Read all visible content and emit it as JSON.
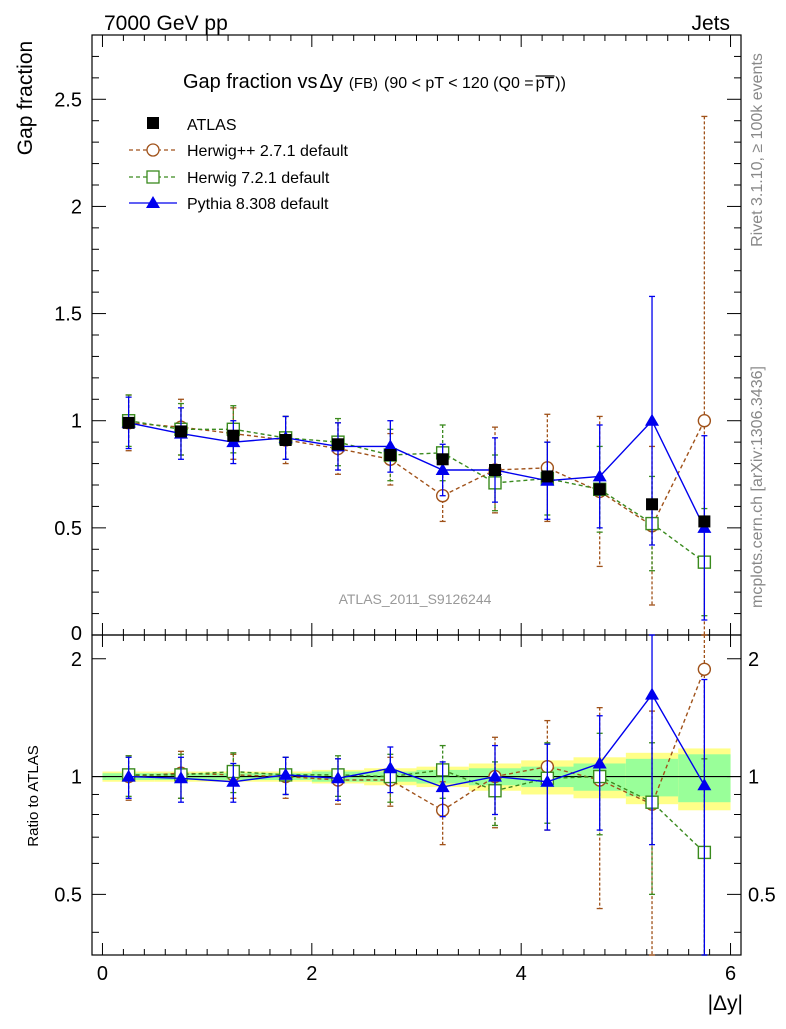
{
  "header": {
    "left": "7000 GeV pp",
    "right": "Jets"
  },
  "side": {
    "rivet": "Rivet 3.1.10, ≥ 100k events",
    "source": "mcplots.cern.ch [arXiv:1306.3436]"
  },
  "watermark": "ATLAS_2011_S9126244",
  "chart_data": {
    "type": "scatter",
    "title": {
      "main": "Gap fraction vs",
      "delta": "Δy",
      "cut": "(FB)",
      "range": "(90 < pT < 120 (Q0 =",
      "pt": "pT",
      "close": "))"
    },
    "xlabel": "|Δy|",
    "ylabel_top": "Gap fraction",
    "ylabel_ratio": "Ratio to ATLAS",
    "xlim": [
      -0.1,
      6.1
    ],
    "ylim_top": [
      0,
      2.8
    ],
    "ylim_ratio": [
      0.35,
      2.3
    ],
    "ratio_scale": "log",
    "xticks": [
      "0",
      "2",
      "4",
      "6"
    ],
    "yticks_top": [
      "0.5",
      "1",
      "1.5",
      "2",
      "2.5"
    ],
    "yticks_ratio": [
      "0.5",
      "1",
      "2"
    ],
    "x": [
      0.25,
      0.75,
      1.25,
      1.75,
      2.25,
      2.75,
      3.25,
      3.75,
      4.25,
      4.75,
      5.25,
      5.75
    ],
    "data_band_inner": [
      0.02,
      0.02,
      0.02,
      0.02,
      0.03,
      0.03,
      0.04,
      0.05,
      0.06,
      0.08,
      0.11,
      0.14
    ],
    "data_band_outer": [
      0.03,
      0.03,
      0.03,
      0.03,
      0.04,
      0.05,
      0.06,
      0.08,
      0.1,
      0.12,
      0.15,
      0.18
    ],
    "series": [
      {
        "name": "ATLAS",
        "color": "#000000",
        "marker": "square-filled",
        "values": [
          0.99,
          0.95,
          0.93,
          0.91,
          0.89,
          0.84,
          0.82,
          0.77,
          0.74,
          0.68,
          0.61,
          0.53
        ],
        "errors": [
          0.0,
          0.0,
          0.0,
          0.0,
          0.0,
          0.0,
          0.0,
          0.0,
          0.0,
          0.0,
          0.0,
          0.0
        ],
        "ratio": [
          1,
          1,
          1,
          1,
          1,
          1,
          1,
          1,
          1,
          1,
          1,
          1
        ],
        "ratio_errors": [
          0,
          0,
          0,
          0,
          0,
          0,
          0,
          0,
          0,
          0,
          0,
          0
        ]
      },
      {
        "name": "Herwig++ 2.7.1 default",
        "color": "#a0521a",
        "marker": "circle-open",
        "values": [
          0.99,
          0.97,
          0.94,
          0.91,
          0.87,
          0.82,
          0.65,
          0.77,
          0.78,
          0.67,
          0.51,
          1.0
        ],
        "errors": [
          0.13,
          0.13,
          0.12,
          0.11,
          0.12,
          0.12,
          0.12,
          0.2,
          0.25,
          0.35,
          0.37,
          1.42
        ],
        "ratio": [
          1.0,
          1.02,
          1.01,
          1.0,
          0.98,
          0.98,
          0.82,
          1.0,
          1.06,
          0.98,
          0.85,
          1.88
        ],
        "ratio_errors": [
          0.13,
          0.14,
          0.13,
          0.12,
          0.13,
          0.14,
          0.15,
          0.26,
          0.33,
          0.52,
          0.62,
          2.7
        ]
      },
      {
        "name": "Herwig 7.2.1 default",
        "color": "#3a8a1e",
        "marker": "square-open",
        "values": [
          1.0,
          0.96,
          0.96,
          0.92,
          0.9,
          0.84,
          0.85,
          0.71,
          0.73,
          0.68,
          0.52,
          0.34
        ],
        "errors": [
          0.12,
          0.12,
          0.11,
          0.1,
          0.11,
          0.12,
          0.13,
          0.13,
          0.17,
          0.2,
          0.22,
          0.25
        ],
        "ratio": [
          1.01,
          1.01,
          1.03,
          1.01,
          1.01,
          1.0,
          1.04,
          0.92,
          0.99,
          1.0,
          0.86,
          0.64
        ],
        "ratio_errors": [
          0.12,
          0.13,
          0.12,
          0.11,
          0.12,
          0.14,
          0.16,
          0.17,
          0.23,
          0.29,
          0.36,
          0.47
        ]
      },
      {
        "name": "Pythia 8.308 default",
        "color": "#0000ee",
        "marker": "triangle-filled",
        "values": [
          0.99,
          0.94,
          0.9,
          0.92,
          0.88,
          0.88,
          0.77,
          0.77,
          0.72,
          0.74,
          1.0,
          0.5
        ],
        "errors": [
          0.12,
          0.12,
          0.1,
          0.1,
          0.11,
          0.12,
          0.12,
          0.15,
          0.18,
          0.24,
          0.58,
          0.43
        ],
        "ratio": [
          1.0,
          0.99,
          0.97,
          1.01,
          0.99,
          1.05,
          0.94,
          1.0,
          0.97,
          1.08,
          1.62,
          0.95
        ],
        "ratio_errors": [
          0.12,
          0.13,
          0.11,
          0.11,
          0.12,
          0.14,
          0.15,
          0.2,
          0.24,
          0.35,
          0.95,
          0.82
        ]
      }
    ],
    "colors": {
      "band_inner": "#99ff99",
      "band_outer": "#ffff88"
    }
  }
}
